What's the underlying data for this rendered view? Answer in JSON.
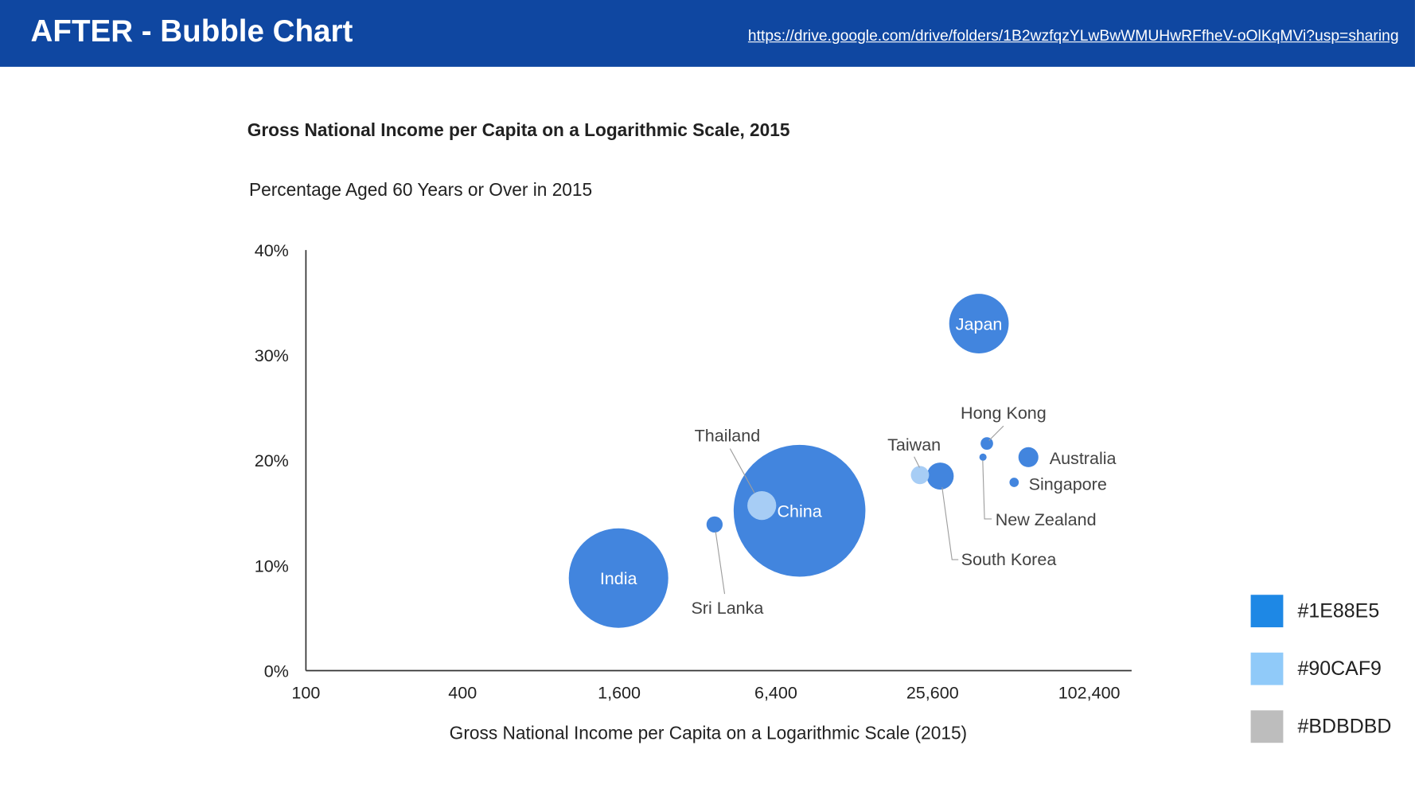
{
  "header": {
    "title": "AFTER - Bubble Chart",
    "link": "https://drive.google.com/drive/folders/1B2wzfqzYLwBwWMUHwRFfheV-oOlKqMVi?usp=sharing"
  },
  "chart_data": {
    "type": "scatter",
    "subtype": "bubble",
    "title": "Gross National Income per Capita on a Logarithmic Scale, 2015",
    "ylabel": "Percentage Aged 60 Years or Over in 2015",
    "xlabel": "Gross National Income per Capita on a Logarithmic Scale (2015)",
    "xscale": "log2",
    "xlim": [
      100,
      102400
    ],
    "ylim": [
      0,
      40
    ],
    "x_ticks": [
      "100",
      "400",
      "1,600",
      "6,400",
      "25,600",
      "102,400"
    ],
    "x_tick_values": [
      100,
      400,
      1600,
      6400,
      25600,
      102400
    ],
    "y_ticks": [
      "0%",
      "10%",
      "20%",
      "30%",
      "40%"
    ],
    "y_tick_values": [
      0,
      10,
      20,
      30,
      40
    ],
    "grid": false,
    "points": [
      {
        "label": "India",
        "x": 1590,
        "y": 8.8,
        "size": 57,
        "color": "#4285DE",
        "label_inside": true
      },
      {
        "label": "China",
        "x": 7890,
        "y": 15.2,
        "size": 100,
        "color": "#4285DE",
        "label_inside": true
      },
      {
        "label": "Thailand",
        "x": 5650,
        "y": 15.7,
        "size": 4.8,
        "color": "#A7CDF5",
        "label_inside": false
      },
      {
        "label": "Sri Lanka",
        "x": 3720,
        "y": 13.9,
        "size": 1.5,
        "color": "#4285DE",
        "label_inside": false
      },
      {
        "label": "Japan",
        "x": 38600,
        "y": 33.0,
        "size": 20.4,
        "color": "#4285DE",
        "label_inside": true
      },
      {
        "label": "Taiwan",
        "x": 22900,
        "y": 18.6,
        "size": 1.9,
        "color": "#A7CDF5",
        "label_inside": false
      },
      {
        "label": "South Korea",
        "x": 27400,
        "y": 18.5,
        "size": 4.2,
        "color": "#4285DE",
        "label_inside": false
      },
      {
        "label": "Hong Kong",
        "x": 41400,
        "y": 21.6,
        "size": 0.9,
        "color": "#4285DE",
        "label_inside": false
      },
      {
        "label": "New Zealand",
        "x": 40000,
        "y": 20.3,
        "size": 0.3,
        "color": "#4285DE",
        "label_inside": false
      },
      {
        "label": "Australia",
        "x": 59800,
        "y": 20.3,
        "size": 2.3,
        "color": "#4285DE",
        "label_inside": false
      },
      {
        "label": "Singapore",
        "x": 52700,
        "y": 17.9,
        "size": 0.5,
        "color": "#4285DE",
        "label_inside": false
      }
    ]
  },
  "legend": [
    {
      "label": "#1E88E5",
      "color": "#1E88E5"
    },
    {
      "label": "#90CAF9",
      "color": "#90CAF9"
    },
    {
      "label": "#BDBDBD",
      "color": "#BDBDBD"
    }
  ]
}
